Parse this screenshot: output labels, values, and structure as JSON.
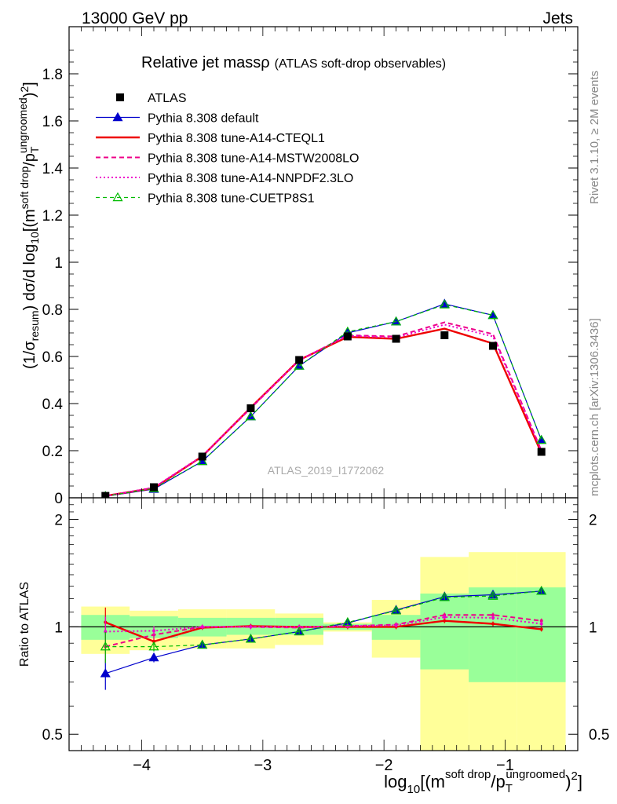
{
  "header": {
    "left": "13000 GeV pp",
    "right": "Jets"
  },
  "side_labels": {
    "rivet": "Rivet 3.1.10, ≥ 2M events",
    "mcplots": "mcplots.cern.ch [arXiv:1306.3436]"
  },
  "colors": {
    "atlas": "#000000",
    "default": "#0000cc",
    "a14_cteql1": "#ee0000",
    "a14_mstw": "#ee0088",
    "a14_nnpdf": "#ee00cc",
    "cuetp8s1": "#00bb00",
    "band_green": "#99ff99",
    "band_yellow": "#ffff99"
  },
  "chart_data": [
    {
      "type": "line",
      "title": "Relative jet mass",
      "title_symbol": "ρ",
      "subtitle": "(ATLAS soft-drop observables)",
      "watermark": "ATLAS_2019_I1772062",
      "ylabel": "(1/σresum) dσ/d log10[(m^soft drop/pT^ungroomed)²]",
      "ylabel_parts": {
        "a": "(1/σ",
        "a_sub": "resum",
        "b": ") dσ/d log",
        "b_sub": "10",
        "c": "[(m",
        "c_sup": "soft drop",
        "d": "/p",
        "d_sub": "T",
        "d_sup": "ungroomed",
        "e": ")",
        "e_sup": "2",
        "f": "]"
      },
      "xlim": [
        -4.6,
        -0.4
      ],
      "ylim": [
        0,
        2.0
      ],
      "yticks": [
        {
          "v": 0,
          "label": "0"
        },
        {
          "v": 0.2,
          "label": "0.2"
        },
        {
          "v": 0.4,
          "label": "0.4"
        },
        {
          "v": 0.6,
          "label": "0.6"
        },
        {
          "v": 0.8,
          "label": "0.8"
        },
        {
          "v": 1.0,
          "label": "1"
        },
        {
          "v": 1.2,
          "label": "1.2"
        },
        {
          "v": 1.4,
          "label": "1.4"
        },
        {
          "v": 1.6,
          "label": "1.6"
        },
        {
          "v": 1.8,
          "label": "1.8"
        }
      ],
      "x": [
        -4.3,
        -3.9,
        -3.5,
        -3.1,
        -2.7,
        -2.3,
        -1.9,
        -1.5,
        -1.1,
        -0.7
      ],
      "bin_edges": [
        -4.5,
        -4.1,
        -3.7,
        -3.3,
        -2.9,
        -2.5,
        -2.1,
        -1.7,
        -1.3,
        -0.9,
        -0.5
      ],
      "series": [
        {
          "key": "atlas",
          "name": "ATLAS",
          "style": "data",
          "values": [
            0.008,
            0.045,
            0.175,
            0.38,
            0.585,
            0.685,
            0.675,
            0.69,
            0.645,
            0.195
          ]
        },
        {
          "key": "default",
          "name": "Pythia 8.308 default",
          "style": "solid-thin-tri",
          "values": [
            0.006,
            0.037,
            0.155,
            0.345,
            0.56,
            0.7,
            0.748,
            0.823,
            0.775,
            0.245
          ]
        },
        {
          "key": "a14_cteql1",
          "name": "Pythia 8.308 tune-A14-CTEQL1",
          "style": "solid-thick",
          "values": [
            0.0085,
            0.041,
            0.176,
            0.383,
            0.585,
            0.683,
            0.675,
            0.718,
            0.655,
            0.19
          ]
        },
        {
          "key": "a14_mstw",
          "name": "Pythia 8.308 tune-A14-MSTW2008LO",
          "style": "dashed",
          "values": [
            0.007,
            0.043,
            0.176,
            0.38,
            0.583,
            0.69,
            0.685,
            0.745,
            0.695,
            0.2
          ]
        },
        {
          "key": "a14_nnpdf",
          "name": "Pythia 8.308 tune-A14-NNPDF2.3LO",
          "style": "dotted",
          "values": [
            0.0075,
            0.044,
            0.178,
            0.382,
            0.585,
            0.688,
            0.68,
            0.735,
            0.685,
            0.2
          ]
        },
        {
          "key": "cuetp8s1",
          "name": "Pythia 8.308 tune-CUETP8S1",
          "style": "dashed-open-tri",
          "values": [
            0.007,
            0.04,
            0.155,
            0.345,
            0.56,
            0.705,
            0.748,
            0.82,
            0.775,
            0.245
          ]
        }
      ]
    },
    {
      "type": "line",
      "ylabel": "Ratio to ATLAS",
      "xlabel": "log10[(m^soft drop/pT^ungroomed)²]",
      "xlabel_parts": {
        "a": "log",
        "a_sub": "10",
        "b": "[(m",
        "b_sup": "soft drop",
        "c": "/p",
        "c_sub": "T",
        "c_sup": "ungroomed",
        "d": ")",
        "d_sup": "2",
        "e": "]"
      },
      "log_scale_y": true,
      "xlim": [
        -4.6,
        -0.4
      ],
      "ylim": [
        0.45,
        2.3
      ],
      "xticks": [
        {
          "v": -4,
          "label": "−4"
        },
        {
          "v": -3,
          "label": "−3"
        },
        {
          "v": -2,
          "label": "−2"
        },
        {
          "v": -1,
          "label": "−1"
        }
      ],
      "yticks": [
        {
          "v": 0.5,
          "label": "0.5"
        },
        {
          "v": 1,
          "label": "1"
        },
        {
          "v": 2,
          "label": "2"
        }
      ],
      "bands": {
        "green": [
          [
            0.92,
            1.08
          ],
          [
            0.93,
            1.07
          ],
          [
            0.94,
            1.06
          ],
          [
            0.95,
            1.06
          ],
          [
            0.95,
            1.06
          ],
          [
            0.98,
            1.02
          ],
          [
            0.92,
            1.08
          ],
          [
            0.76,
            1.24
          ],
          [
            0.7,
            1.29
          ],
          [
            0.7,
            1.29
          ]
        ],
        "yellow": [
          [
            0.84,
            1.14
          ],
          [
            0.86,
            1.11
          ],
          [
            0.87,
            1.12
          ],
          [
            0.87,
            1.12
          ],
          [
            0.89,
            1.09
          ],
          [
            0.97,
            1.03
          ],
          [
            0.82,
            1.19
          ],
          [
            0.42,
            1.57
          ],
          [
            0.38,
            1.62
          ],
          [
            0.38,
            1.62
          ]
        ]
      },
      "series": [
        {
          "key": "default",
          "name": "Pythia 8.308 default",
          "values": [
            0.74,
            0.82,
            0.89,
            0.925,
            0.97,
            1.025,
            1.115,
            1.215,
            1.23,
            1.26
          ]
        },
        {
          "key": "a14_cteql1",
          "name": "Pythia 8.308 tune-A14-CTEQL1",
          "values": [
            1.03,
            0.91,
            0.995,
            1.005,
            1.0,
            1.0,
            1.0,
            1.04,
            1.02,
            0.985
          ]
        },
        {
          "key": "a14_mstw",
          "name": "Pythia 8.308 tune-A14-MSTW2008LO",
          "values": [
            0.88,
            0.95,
            1.0,
            1.0,
            0.995,
            1.005,
            1.015,
            1.08,
            1.08,
            1.04
          ]
        },
        {
          "key": "a14_nnpdf",
          "name": "Pythia 8.308 tune-A14-NNPDF2.3LO",
          "values": [
            0.97,
            0.975,
            1.0,
            1.0,
            1.0,
            1.005,
            1.01,
            1.065,
            1.06,
            1.02
          ]
        },
        {
          "key": "cuetp8s1",
          "name": "Pythia 8.308 tune-CUETP8S1",
          "values": [
            0.88,
            0.88,
            0.89,
            0.925,
            0.97,
            1.03,
            1.11,
            1.21,
            1.22,
            1.26
          ]
        }
      ]
    }
  ]
}
